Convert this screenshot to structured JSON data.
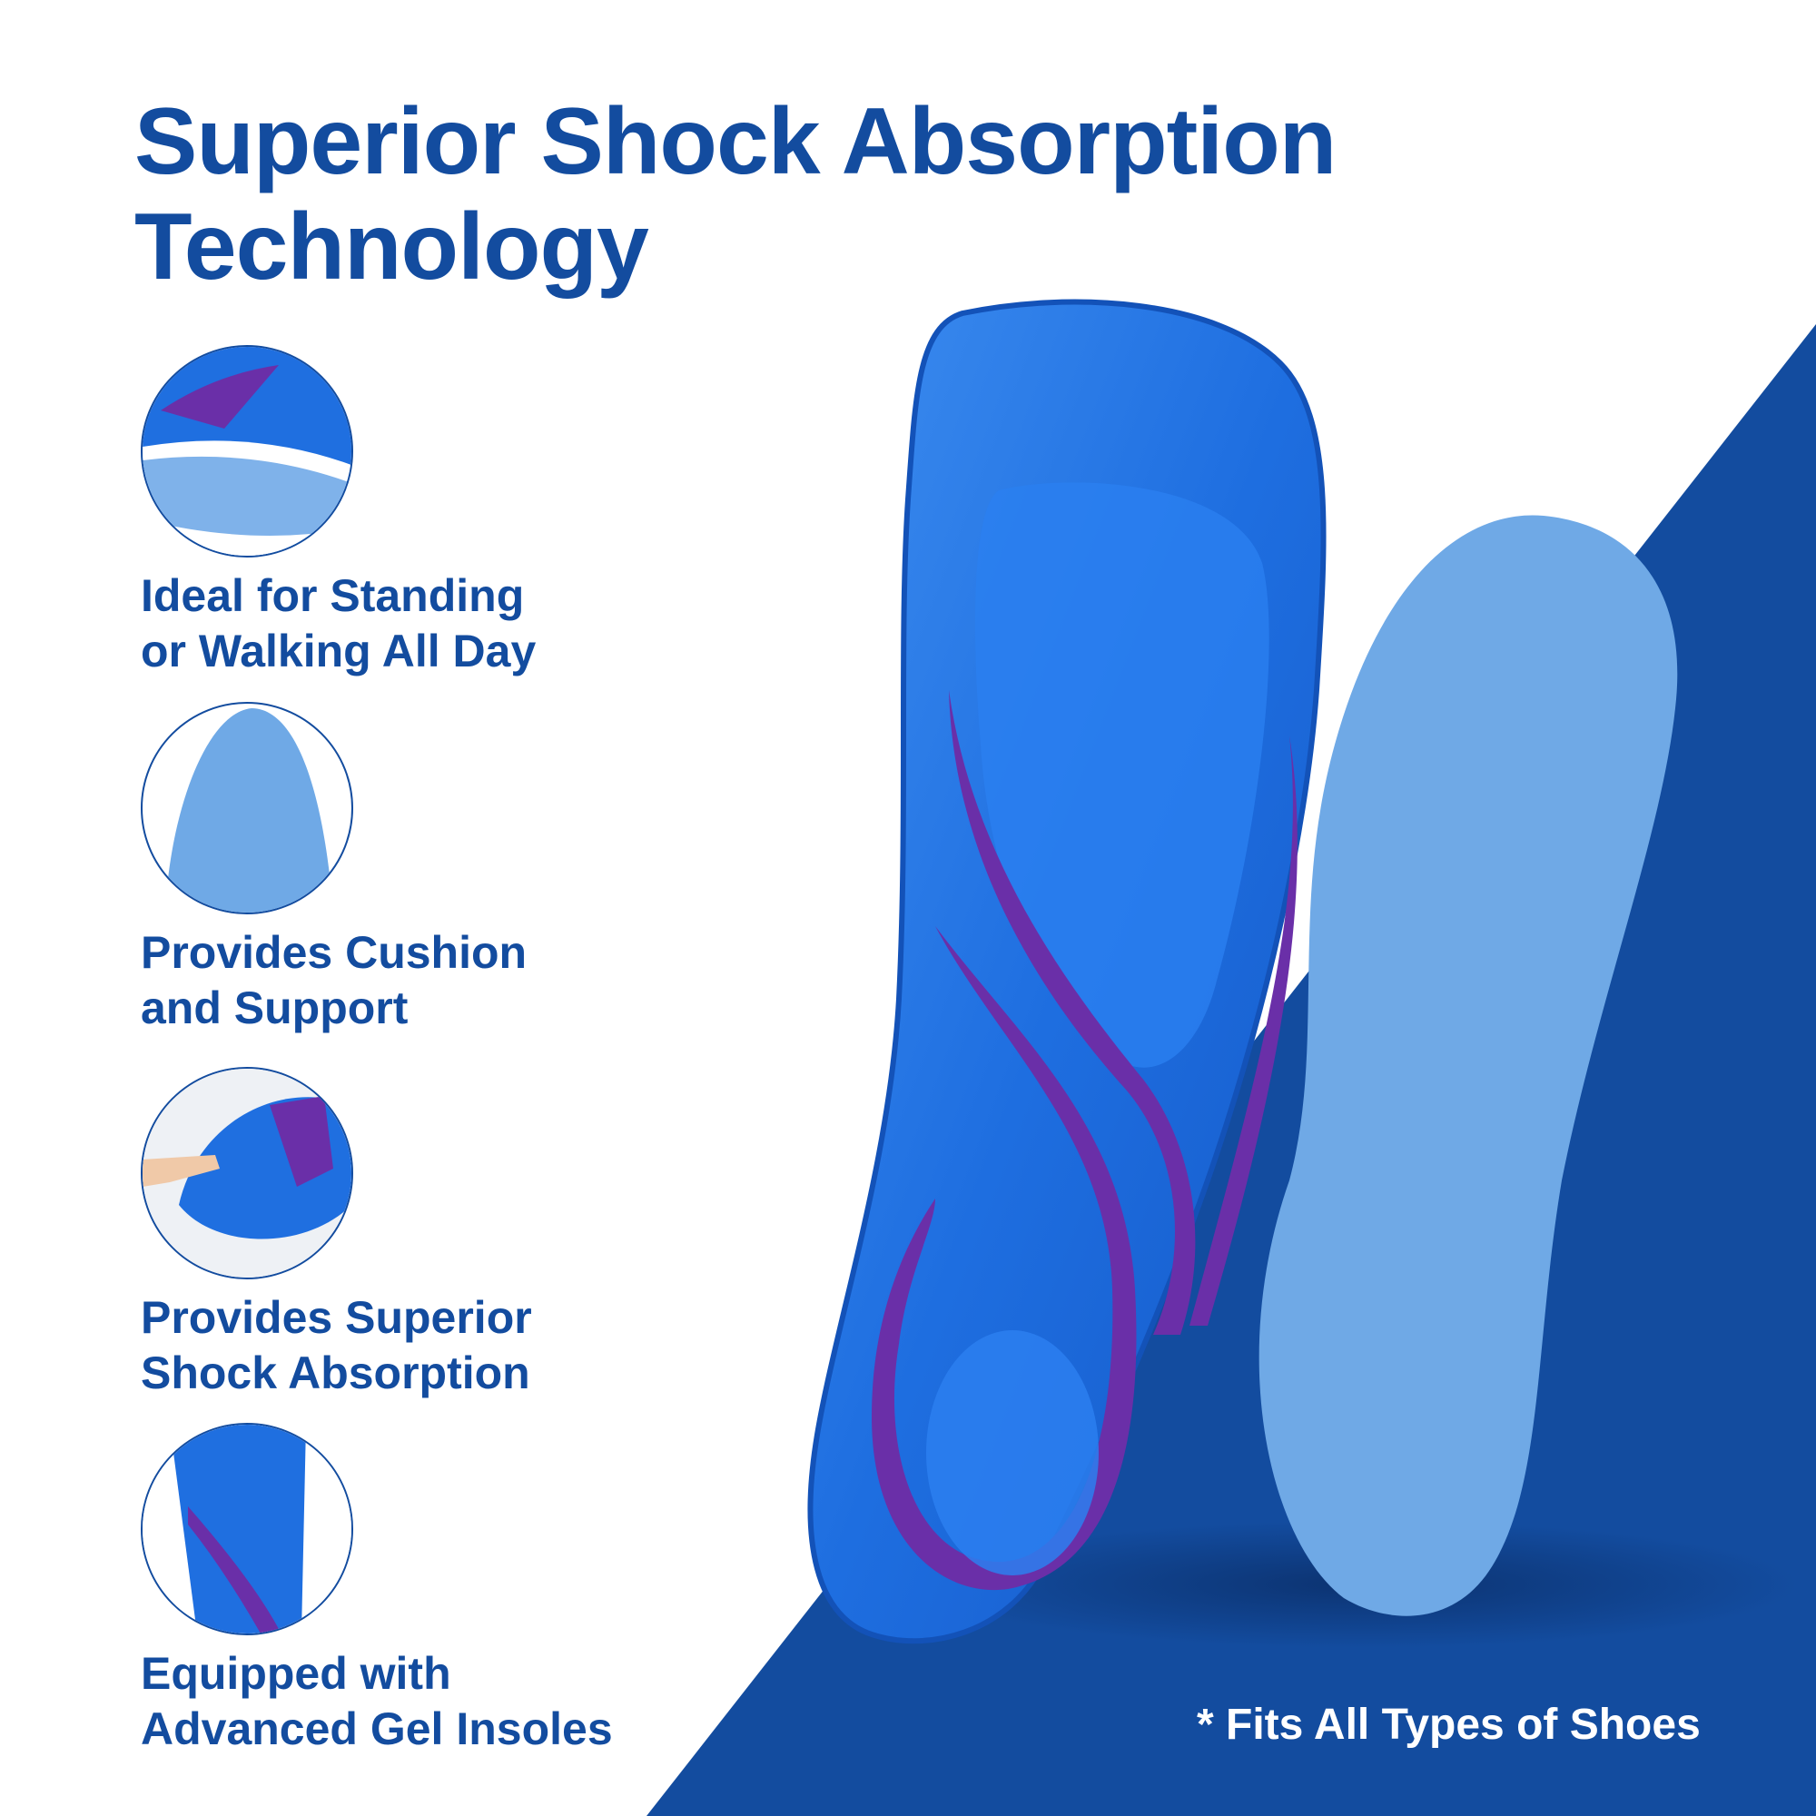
{
  "headline": {
    "line1": "Superior Shock Absorption",
    "line2": "Technology"
  },
  "features": [
    {
      "icon": "insole-side-view-icon",
      "line1": "Ideal for Standing",
      "line2": "or Walking All Day"
    },
    {
      "icon": "foam-base-icon",
      "line1": "Provides Cushion",
      "line2": "and Support"
    },
    {
      "icon": "finger-press-insole-icon",
      "line1": "Provides Superior",
      "line2": "Shock Absorption"
    },
    {
      "icon": "gel-insole-closeup-icon",
      "line1": "Equipped with",
      "line2": "Advanced Gel Insoles"
    }
  ],
  "footnote": "* Fits All Types of Shoes",
  "colors": {
    "brand_blue": "#134c9f",
    "gel_blue": "#1f6fe0",
    "foam_blue": "#6fa9e6",
    "purple": "#6a2fa8"
  }
}
